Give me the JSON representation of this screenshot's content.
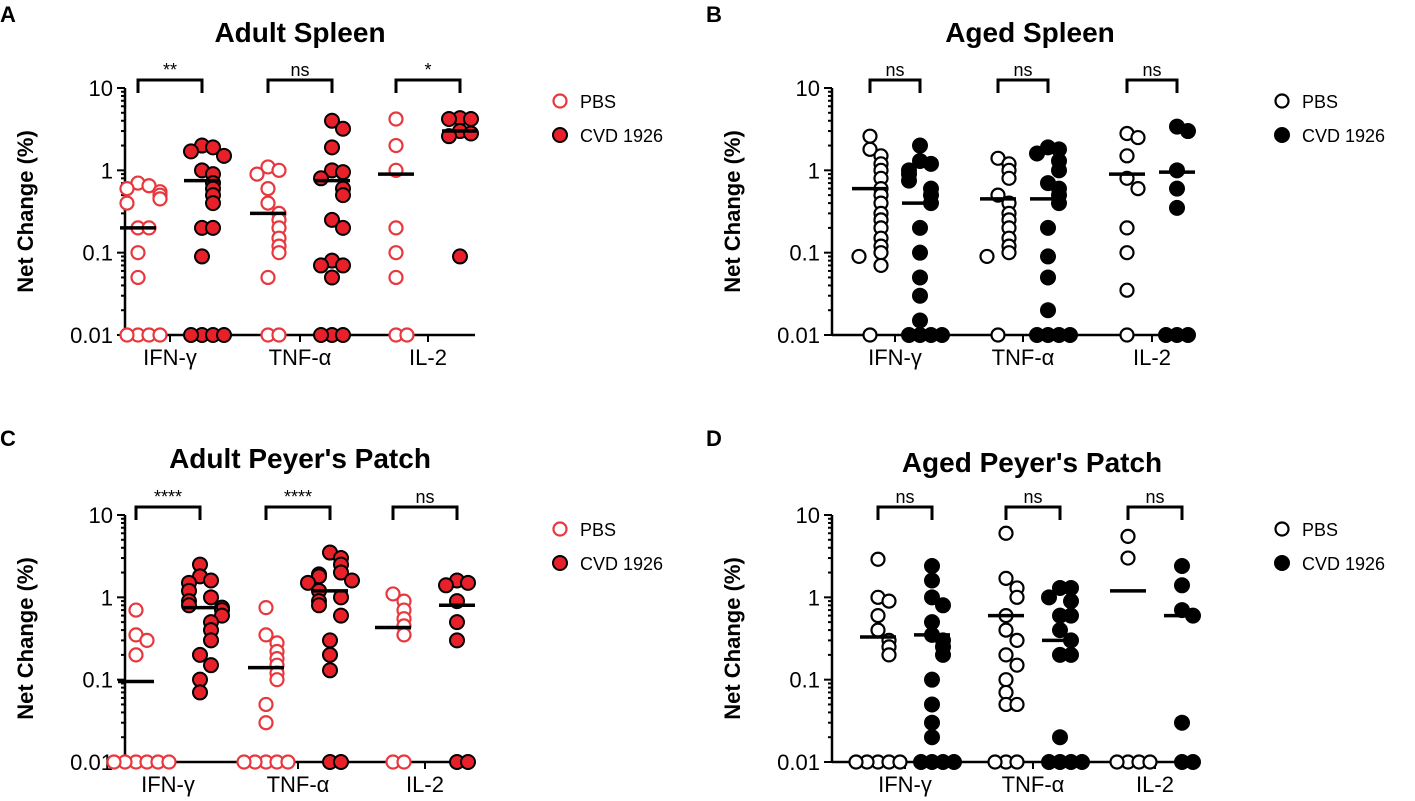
{
  "chart_data": [
    {
      "panel": "A",
      "type": "scatter",
      "title": "Adult Spleen",
      "ylabel": "Net Change (%)",
      "yscale": "log",
      "ylim": [
        0.01,
        10
      ],
      "yticks": [
        "10",
        "1",
        "0.1",
        "0.01"
      ],
      "categories": [
        "IFN-γ",
        "TNF-α",
        "IL-2"
      ],
      "legend": [
        {
          "name": "PBS",
          "style": "open"
        },
        {
          "name": "CVD 1926",
          "style": "filled"
        }
      ],
      "colors": {
        "stroke": "#e8373d",
        "fill": "#e8202a",
        "edge": "#000000"
      },
      "significance": [
        "**",
        "ns",
        "*"
      ],
      "series": [
        {
          "name": "PBS",
          "means": [
            0.2,
            0.3,
            0.9
          ],
          "points": [
            [
              0.7,
              0.65,
              0.6,
              0.55,
              0.5,
              0.45,
              0.4,
              0.2,
              0.2,
              0.1,
              0.05,
              0.01,
              0.01,
              0.01,
              0.01
            ],
            [
              1.1,
              1.0,
              0.9,
              0.6,
              0.4,
              0.3,
              0.25,
              0.2,
              0.15,
              0.12,
              0.1,
              0.05,
              0.01,
              0.01
            ],
            [
              4.2,
              2.0,
              1.0,
              0.2,
              0.1,
              0.05,
              0.01,
              0.01
            ]
          ]
        },
        {
          "name": "CVD 1926",
          "means": [
            0.75,
            0.75,
            3.0
          ],
          "points": [
            [
              2.0,
              1.9,
              1.7,
              1.5,
              1.0,
              0.9,
              0.7,
              0.6,
              0.5,
              0.4,
              0.2,
              0.2,
              0.09,
              0.01,
              0.01,
              0.01,
              0.01
            ],
            [
              4.0,
              3.2,
              1.9,
              1.0,
              0.95,
              0.8,
              0.6,
              0.5,
              0.25,
              0.2,
              0.08,
              0.07,
              0.07,
              0.05,
              0.01,
              0.01,
              0.01
            ],
            [
              4.3,
              4.2,
              4.2,
              3.0,
              2.8,
              2.6,
              0.09
            ]
          ]
        }
      ]
    },
    {
      "panel": "B",
      "type": "scatter",
      "title": "Aged Spleen",
      "ylabel": "Net Change (%)",
      "yscale": "log",
      "ylim": [
        0.01,
        10
      ],
      "yticks": [
        "10",
        "1",
        "0.1",
        "0.01"
      ],
      "categories": [
        "IFN-γ",
        "TNF-α",
        "IL-2"
      ],
      "legend": [
        {
          "name": "PBS",
          "style": "open"
        },
        {
          "name": "CVD 1926",
          "style": "filled"
        }
      ],
      "colors": {
        "stroke": "#000000",
        "fill": "#000000",
        "edge": "#000000"
      },
      "significance": [
        "ns",
        "ns",
        "ns"
      ],
      "series": [
        {
          "name": "PBS",
          "means": [
            0.6,
            0.45,
            0.9
          ],
          "points": [
            [
              2.6,
              1.8,
              1.5,
              1.2,
              1.0,
              0.8,
              0.6,
              0.5,
              0.4,
              0.3,
              0.25,
              0.2,
              0.15,
              0.12,
              0.1,
              0.09,
              0.07,
              0.01
            ],
            [
              1.4,
              1.2,
              1.0,
              0.8,
              0.5,
              0.4,
              0.3,
              0.25,
              0.2,
              0.15,
              0.12,
              0.1,
              0.09,
              0.01
            ],
            [
              2.8,
              2.5,
              1.5,
              0.8,
              0.6,
              0.2,
              0.1,
              0.035,
              0.01
            ]
          ]
        },
        {
          "name": "CVD 1926",
          "means": [
            0.4,
            0.45,
            0.95
          ],
          "points": [
            [
              2.0,
              1.3,
              1.2,
              1.0,
              0.9,
              0.75,
              0.6,
              0.5,
              0.4,
              0.2,
              0.1,
              0.05,
              0.03,
              0.015,
              0.01,
              0.01,
              0.01,
              0.01
            ],
            [
              1.9,
              1.8,
              1.6,
              1.3,
              1.0,
              0.7,
              0.6,
              0.5,
              0.4,
              0.2,
              0.09,
              0.05,
              0.02,
              0.01,
              0.01,
              0.01,
              0.01
            ],
            [
              3.4,
              3.0,
              1.0,
              0.6,
              0.35,
              0.01,
              0.01,
              0.01
            ]
          ]
        }
      ]
    },
    {
      "panel": "C",
      "type": "scatter",
      "title": "Adult Peyer's Patch",
      "ylabel": "Net Change (%)",
      "yscale": "log",
      "ylim": [
        0.01,
        10
      ],
      "yticks": [
        "10",
        "1",
        "0.1",
        "0.01"
      ],
      "categories": [
        "IFN-γ",
        "TNF-α",
        "IL-2"
      ],
      "legend": [
        {
          "name": "PBS",
          "style": "open"
        },
        {
          "name": "CVD 1926",
          "style": "filled"
        }
      ],
      "colors": {
        "stroke": "#e8373d",
        "fill": "#e8202a",
        "edge": "#000000"
      },
      "significance": [
        "****",
        "****",
        "ns"
      ],
      "series": [
        {
          "name": "PBS",
          "means": [
            0.095,
            0.14,
            0.43
          ],
          "points": [
            [
              0.7,
              0.35,
              0.3,
              0.2,
              0.01,
              0.01,
              0.01,
              0.01,
              0.01,
              0.01
            ],
            [
              0.75,
              0.35,
              0.28,
              0.22,
              0.18,
              0.15,
              0.12,
              0.1,
              0.05,
              0.03,
              0.01,
              0.01,
              0.01,
              0.01,
              0.01
            ],
            [
              1.1,
              0.9,
              0.7,
              0.55,
              0.45,
              0.35,
              0.01,
              0.01
            ]
          ]
        },
        {
          "name": "CVD 1926",
          "means": [
            0.75,
            1.2,
            0.8
          ],
          "points": [
            [
              2.5,
              1.8,
              1.6,
              1.5,
              1.2,
              1.0,
              0.9,
              0.8,
              0.75,
              0.7,
              0.6,
              0.5,
              0.4,
              0.3,
              0.2,
              0.15,
              0.1,
              0.07
            ],
            [
              3.5,
              3.0,
              2.5,
              2.0,
              1.9,
              1.8,
              1.6,
              1.5,
              1.2,
              1.0,
              0.9,
              0.8,
              0.6,
              0.3,
              0.2,
              0.13,
              0.01,
              0.01
            ],
            [
              1.6,
              1.5,
              1.4,
              0.9,
              0.5,
              0.3,
              0.01,
              0.01
            ]
          ]
        }
      ]
    },
    {
      "panel": "D",
      "type": "scatter",
      "title": "Aged Peyer's Patch",
      "ylabel": "Net Change (%)",
      "yscale": "log",
      "ylim": [
        0.01,
        10
      ],
      "yticks": [
        "10",
        "1",
        "0.1",
        "0.01"
      ],
      "categories": [
        "IFN-γ",
        "TNF-α",
        "IL-2"
      ],
      "legend": [
        {
          "name": "PBS",
          "style": "open"
        },
        {
          "name": "CVD 1926",
          "style": "filled"
        }
      ],
      "colors": {
        "stroke": "#000000",
        "fill": "#000000",
        "edge": "#000000"
      },
      "significance": [
        "ns",
        "ns",
        "ns"
      ],
      "series": [
        {
          "name": "PBS",
          "means": [
            0.33,
            0.6,
            1.2
          ],
          "points": [
            [
              2.9,
              1.0,
              0.9,
              0.6,
              0.4,
              0.3,
              0.25,
              0.2,
              0.01,
              0.01,
              0.01,
              0.01,
              0.01
            ],
            [
              6.0,
              1.7,
              1.3,
              1.0,
              0.6,
              0.4,
              0.3,
              0.2,
              0.15,
              0.1,
              0.07,
              0.05,
              0.05,
              0.01,
              0.01,
              0.01
            ],
            [
              5.5,
              3.0,
              0.01,
              0.01,
              0.01,
              0.01
            ]
          ]
        },
        {
          "name": "CVD 1926",
          "means": [
            0.35,
            0.3,
            0.6
          ],
          "points": [
            [
              2.4,
              1.6,
              1.0,
              0.8,
              0.5,
              0.35,
              0.3,
              0.25,
              0.2,
              0.1,
              0.05,
              0.03,
              0.02,
              0.01,
              0.01,
              0.01,
              0.01
            ],
            [
              1.3,
              1.3,
              1.0,
              0.9,
              0.6,
              0.6,
              0.4,
              0.3,
              0.2,
              0.2,
              0.02,
              0.01,
              0.01,
              0.01,
              0.01
            ],
            [
              2.4,
              1.4,
              0.7,
              0.6,
              0.03,
              0.01,
              0.01
            ]
          ]
        }
      ]
    }
  ]
}
